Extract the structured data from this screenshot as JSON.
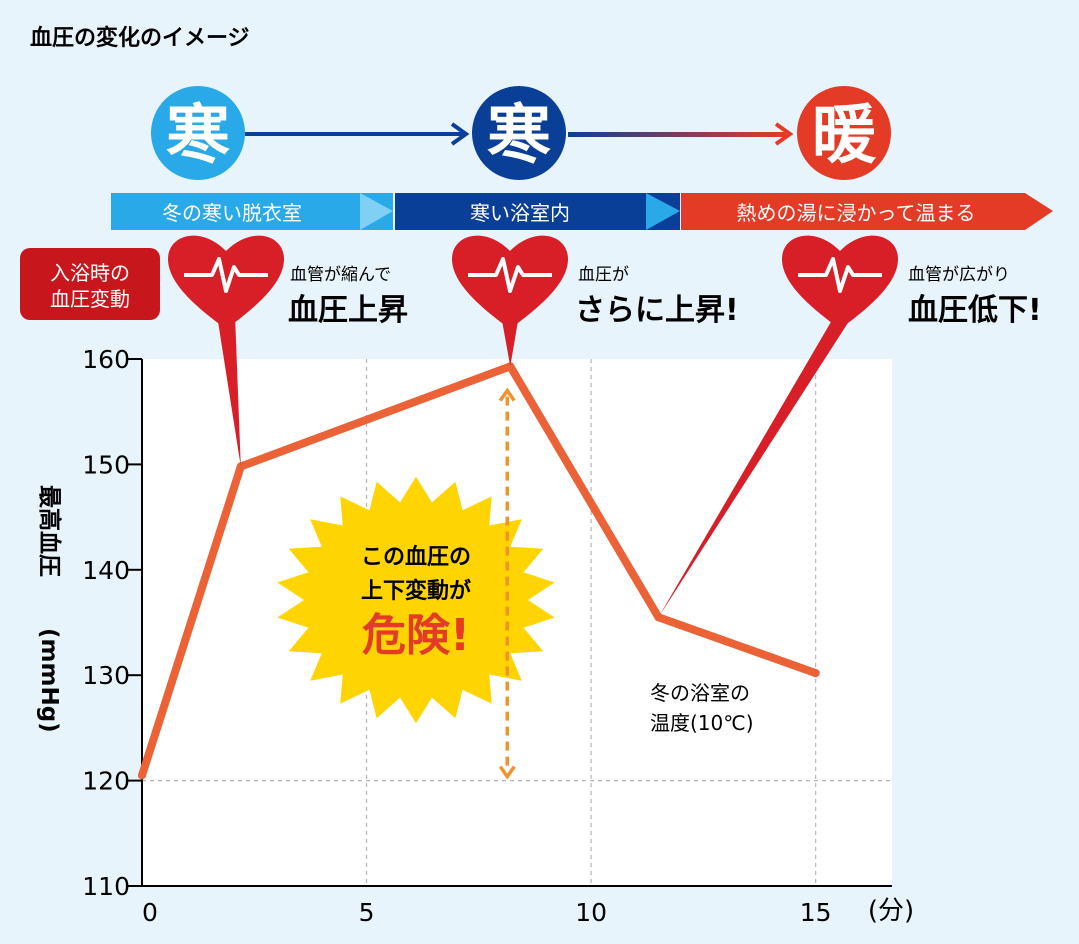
{
  "header": {
    "title": "血圧の変化のイメージ"
  },
  "stages": [
    {
      "icon_text": "寒",
      "label": "冬の寒い脱衣室"
    },
    {
      "icon_text": "寒",
      "label": "寒い浴室内"
    },
    {
      "icon_text": "暖",
      "label": "熱めの湯に浸かって温まる"
    }
  ],
  "badge": {
    "line1": "入浴時の",
    "line2": "血圧変動"
  },
  "heart_notes": [
    {
      "small": "血管が縮んで",
      "big": "血圧上昇"
    },
    {
      "small": "血圧が",
      "big": "さらに上昇!"
    },
    {
      "small": "血管が広がり",
      "big": "血圧低下!"
    }
  ],
  "burst": {
    "line1": "この血圧の",
    "line2": "上下変動が",
    "line3": "危険!"
  },
  "annotation": {
    "line1": "冬の浴室の",
    "line2": "温度(10℃)"
  },
  "colors": {
    "background": "#e8f4fb",
    "plot_bg": "#ffffff",
    "line": "#eb6236",
    "cold_light": "#29a9e8",
    "cold_dark": "#0a3f98",
    "warm": "#e33b26",
    "heart": "#d81e26",
    "burst": "#ffd400",
    "arrow": "#f0932c",
    "badge": "#c8161d"
  },
  "chart_data": {
    "type": "line",
    "x": [
      0,
      2.2,
      8.2,
      11.5,
      15
    ],
    "values": [
      120.5,
      149.8,
      159.3,
      135.5,
      130.2
    ],
    "xticks": [
      "0",
      "5",
      "10",
      "15"
    ],
    "xtick_values": [
      0,
      5,
      10,
      15
    ],
    "yticks": [
      "110",
      "120",
      "130",
      "140",
      "150",
      "160"
    ],
    "ytick_values": [
      110,
      120,
      130,
      140,
      150,
      160
    ],
    "xunit": "(分)",
    "ylabel_main": "最高血圧",
    "ylabel_unit": "(mmHg)",
    "xlim": [
      0,
      16.7
    ],
    "ylim": [
      110,
      160
    ],
    "grid_x": [
      5,
      10,
      15
    ],
    "grid_y": [
      120
    ],
    "danger_range": {
      "x": 8.2,
      "from": 120,
      "to": 157
    },
    "callouts": [
      {
        "x": 2.2,
        "y": 149.8
      },
      {
        "x": 8.2,
        "y": 159.3
      },
      {
        "x": 11.5,
        "y": 135.5
      }
    ]
  }
}
